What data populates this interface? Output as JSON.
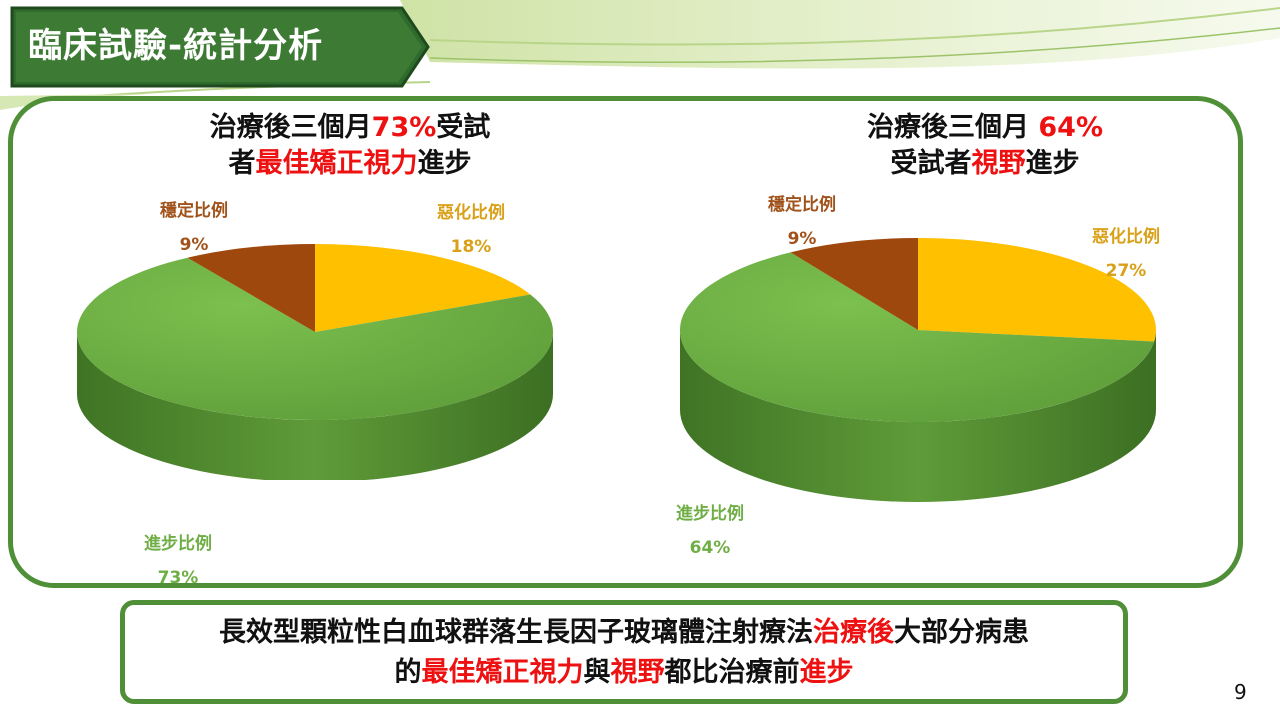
{
  "slide_title": "臨床試驗-統計分析",
  "page_number": "9",
  "colors": {
    "green_frame": "#4f8f37",
    "improved": "#70ad47",
    "worsened": "#ffc000",
    "stable": "#9e480e",
    "highlight_red": "#ee1111"
  },
  "left_heading": {
    "line1_a": "治療後三個月",
    "line1_pct": "73%",
    "line1_b": "受試",
    "line2_a": "者",
    "line2_red": "最佳矯正視力",
    "line2_b": "進步"
  },
  "right_heading": {
    "line1_a": "治療後三個月 ",
    "line1_pct": "64%",
    "line2_a": "受試者",
    "line2_red": "視野",
    "line2_b": "進步"
  },
  "chart_data": [
    {
      "type": "pie",
      "title": "",
      "categories": [
        "進步比例",
        "惡化比例",
        "穩定比例"
      ],
      "values": [
        73,
        18,
        9
      ],
      "labels": [
        {
          "name": "惡化比例",
          "value": "18%"
        },
        {
          "name": "穩定比例",
          "value": "9%"
        },
        {
          "name": "進步比例",
          "value": "73%"
        }
      ]
    },
    {
      "type": "pie",
      "title": "",
      "categories": [
        "進步比例",
        "惡化比例",
        "穩定比例"
      ],
      "values": [
        64,
        27,
        9
      ],
      "labels": [
        {
          "name": "惡化比例",
          "value": "27%"
        },
        {
          "name": "穩定比例",
          "value": "9%"
        },
        {
          "name": "進步比例",
          "value": "64%"
        }
      ]
    }
  ],
  "summary": {
    "line1_a": "長效型顆粒性白血球群落生長因子玻璃體注射療法",
    "line1_red": "治療後",
    "line1_b": "大部分病患",
    "line2_a": "的",
    "line2_red1": "最佳矯正視力",
    "line2_b": "與",
    "line2_red2": "視野",
    "line2_c": "都比治療前",
    "line2_red3": "進步"
  }
}
